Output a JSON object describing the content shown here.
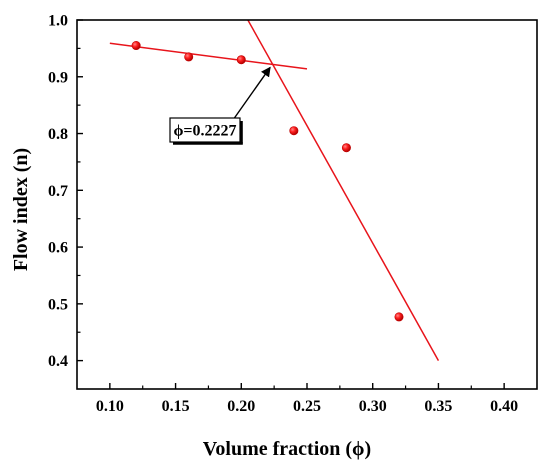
{
  "chart_data": {
    "type": "scatter",
    "xlabel": "Volume fraction (ϕ)",
    "ylabel": "Flow index (n)",
    "xlim": [
      0.075,
      0.425
    ],
    "ylim": [
      0.35,
      1.0
    ],
    "x_ticks": [
      0.1,
      0.15,
      0.2,
      0.25,
      0.3,
      0.35,
      0.4
    ],
    "x_tick_labels": [
      "0.10",
      "0.15",
      "0.20",
      "0.25",
      "0.30",
      "0.35",
      "0.40"
    ],
    "y_ticks": [
      0.4,
      0.5,
      0.6,
      0.7,
      0.8,
      0.9,
      1.0
    ],
    "y_tick_labels": [
      "0.4",
      "0.5",
      "0.6",
      "0.7",
      "0.8",
      "0.9",
      "1.0"
    ],
    "grid": false,
    "series": [
      {
        "x": [
          0.12,
          0.16,
          0.2,
          0.24,
          0.28,
          0.32
        ],
        "y": [
          0.955,
          0.935,
          0.93,
          0.805,
          0.775,
          0.477
        ],
        "color": "#e8141b"
      }
    ],
    "fit_lines": [
      {
        "x": [
          0.1,
          0.25
        ],
        "y": [
          0.959,
          0.914
        ],
        "color": "#e8141b"
      },
      {
        "x": [
          0.205,
          0.35
        ],
        "y": [
          1.0,
          0.4
        ],
        "color": "#e8141b"
      }
    ],
    "annotation": {
      "text": "ϕ=0.2227",
      "target": {
        "x": 0.2227,
        "y": 0.92
      },
      "arrow_color": "#000000"
    }
  }
}
